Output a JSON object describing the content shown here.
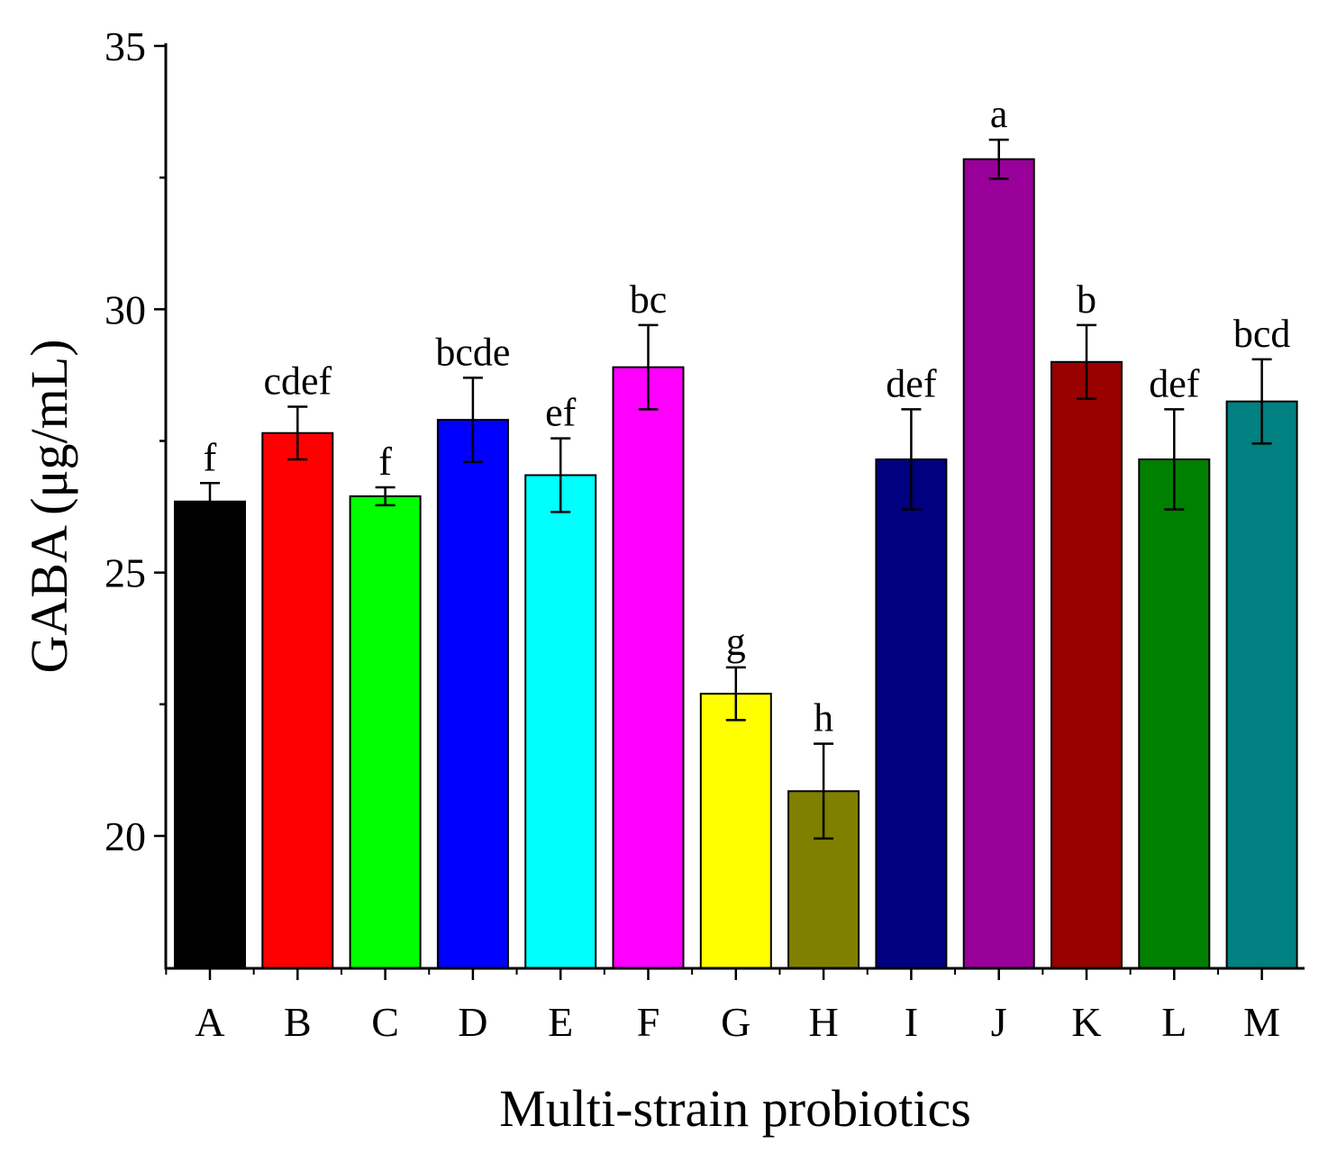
{
  "chart_data": {
    "type": "bar",
    "title": "",
    "xlabel": "Multi-strain probiotics",
    "ylabel": "GABA (μg/mL)",
    "ylim": [
      17.5,
      35
    ],
    "yticks": [
      20,
      25,
      30,
      35
    ],
    "grid": false,
    "categories": [
      "A",
      "B",
      "C",
      "D",
      "E",
      "F",
      "G",
      "H",
      "I",
      "J",
      "K",
      "L",
      "M"
    ],
    "values": [
      26.35,
      27.65,
      26.45,
      27.9,
      26.85,
      28.9,
      22.7,
      20.85,
      27.15,
      32.85,
      29.0,
      27.15,
      28.25
    ],
    "errors": [
      0.35,
      0.5,
      0.17,
      0.8,
      0.7,
      0.8,
      0.5,
      0.9,
      0.95,
      0.37,
      0.7,
      0.95,
      0.8
    ],
    "significance_labels": [
      "f",
      "cdef",
      "f",
      "bcde",
      "ef",
      "bc",
      "g",
      "h",
      "def",
      "a",
      "b",
      "def",
      "bcd"
    ],
    "colors": [
      "#000000",
      "#ff0000",
      "#00ff00",
      "#0000ff",
      "#00ffff",
      "#ff00ff",
      "#ffff00",
      "#808000",
      "#000080",
      "#990099",
      "#990000",
      "#008000",
      "#008080"
    ]
  }
}
